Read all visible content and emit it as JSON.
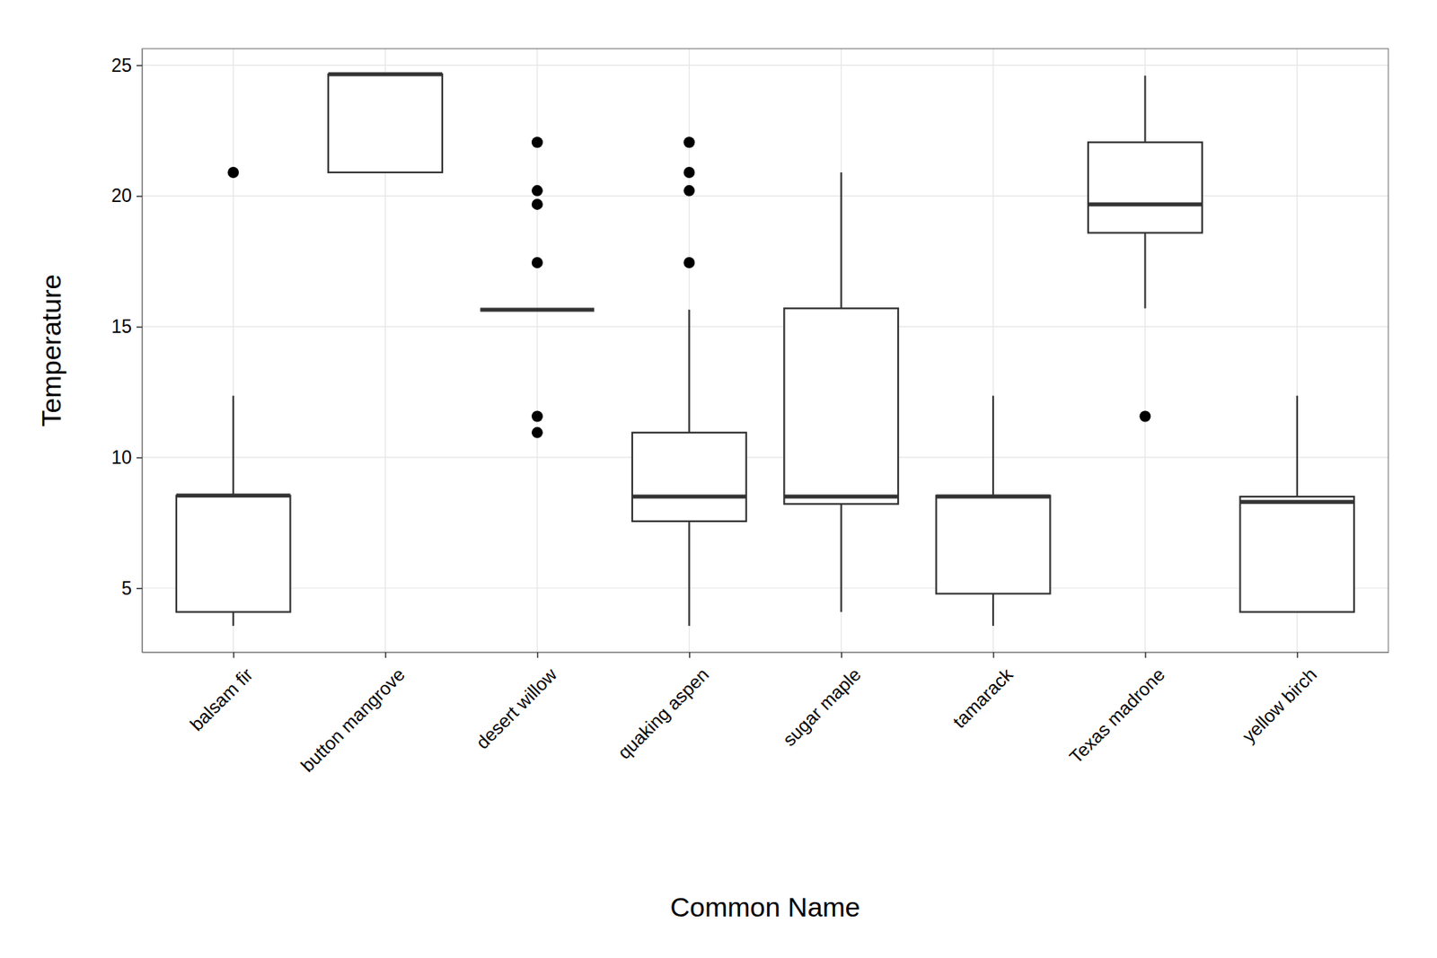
{
  "chart_data": {
    "type": "box",
    "x_label": "Common Name",
    "y_label": "Temperature",
    "categories": [
      "balsam fir",
      "button mangrove",
      "desert willow",
      "quaking aspen",
      "sugar maple",
      "tamarack",
      "Texas madrone",
      "yellow birch"
    ],
    "boxes": [
      {
        "low": 3.56,
        "q1": 4.09,
        "median": 8.54,
        "q3": 8.54,
        "high": 12.36,
        "outliers": [
          20.9
        ]
      },
      {
        "low": 20.9,
        "q1": 20.9,
        "median": 24.65,
        "q3": 24.65,
        "high": 24.65,
        "outliers": []
      },
      {
        "low": 15.65,
        "q1": 15.65,
        "median": 15.65,
        "q3": 15.65,
        "high": 15.65,
        "outliers": [
          22.05,
          20.2,
          19.68,
          17.45,
          11.57,
          10.95
        ]
      },
      {
        "low": 3.56,
        "q1": 7.56,
        "median": 8.5,
        "q3": 10.95,
        "high": 15.65,
        "outliers": [
          22.05,
          20.9,
          20.2,
          17.45
        ]
      },
      {
        "low": 4.09,
        "q1": 8.22,
        "median": 8.5,
        "q3": 15.7,
        "high": 20.9,
        "outliers": []
      },
      {
        "low": 3.56,
        "q1": 4.79,
        "median": 8.5,
        "q3": 8.54,
        "high": 12.36,
        "outliers": []
      },
      {
        "low": 15.7,
        "q1": 18.59,
        "median": 19.68,
        "q3": 22.05,
        "high": 24.6,
        "outliers": [
          11.57
        ]
      },
      {
        "low": 4.09,
        "q1": 4.09,
        "median": 8.3,
        "q3": 8.5,
        "high": 12.36,
        "outliers": []
      }
    ],
    "ylim": [
      2.55,
      25.63
    ],
    "yticks": [
      5,
      10,
      15,
      20,
      25
    ],
    "grid": true,
    "color": "#333333"
  }
}
